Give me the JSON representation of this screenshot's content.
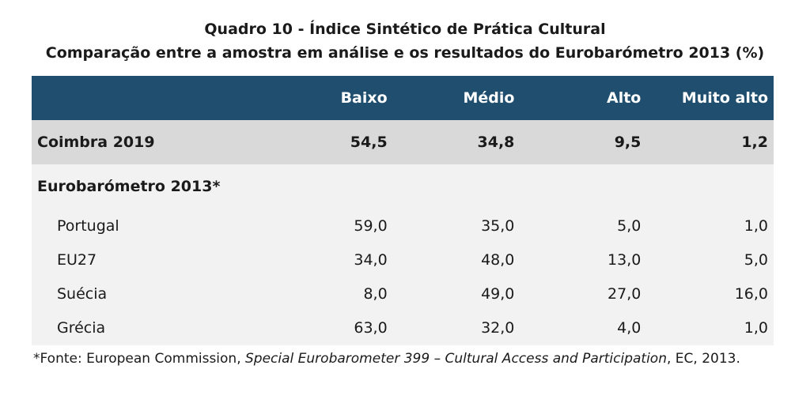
{
  "title": {
    "line1": "Quadro 10 - Índice Sintético de Prática Cultural",
    "line2": "Comparação entre a amostra em análise e os resultados do Eurobarómetro 2013 (%)"
  },
  "table": {
    "header_color": "#1f4e6e",
    "columns": [
      "",
      "Baixo",
      "Médio",
      "Alto",
      "Muito alto"
    ],
    "highlight": {
      "label": "Coimbra 2019",
      "values": [
        "54,5",
        "34,8",
        "9,5",
        "1,2"
      ]
    },
    "group": {
      "label": "Eurobarómetro 2013*"
    },
    "rows": [
      {
        "label": "Portugal",
        "values": [
          "59,0",
          "35,0",
          "5,0",
          "1,0"
        ]
      },
      {
        "label": "EU27",
        "values": [
          "34,0",
          "48,0",
          "13,0",
          "5,0"
        ]
      },
      {
        "label": "Suécia",
        "values": [
          "8,0",
          "49,0",
          "27,0",
          "16,0"
        ]
      },
      {
        "label": "Grécia",
        "values": [
          "63,0",
          "32,0",
          "4,0",
          "1,0"
        ]
      }
    ]
  },
  "footnote": {
    "prefix": "*Fonte: European Commission, ",
    "italic": "Special Eurobarometer 399 – Cultural Access and Participation",
    "suffix": ", EC, 2013."
  }
}
